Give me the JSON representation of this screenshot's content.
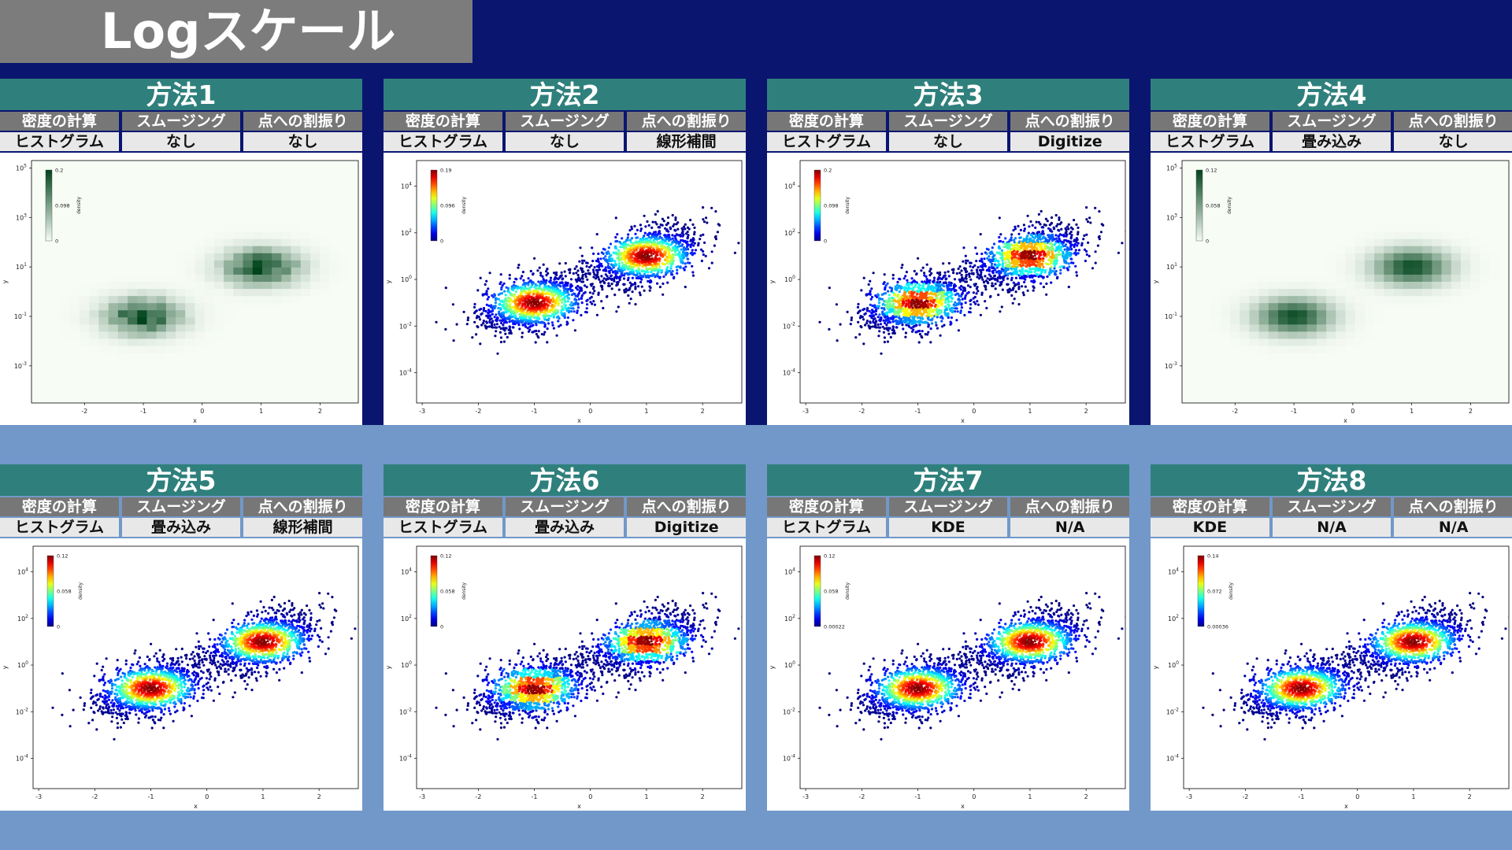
{
  "page": {
    "title": "Logスケール",
    "colors": {
      "background": "#0a1570",
      "lower_band": "#7198c8",
      "panel_header": "#2f807c",
      "label_header": "#777777",
      "value_cell": "#e8e8e8"
    }
  },
  "panels": [
    {
      "name": "方法1",
      "headers": [
        "密度の計算",
        "スムージング",
        "点への割振り"
      ],
      "values": [
        "ヒストグラム",
        "なし",
        "なし"
      ]
    },
    {
      "name": "方法2",
      "headers": [
        "密度の計算",
        "スムージング",
        "点への割振り"
      ],
      "values": [
        "ヒストグラム",
        "なし",
        "線形補間"
      ]
    },
    {
      "name": "方法3",
      "headers": [
        "密度の計算",
        "スムージング",
        "点への割振り"
      ],
      "values": [
        "ヒストグラム",
        "なし",
        "Digitize"
      ]
    },
    {
      "name": "方法4",
      "headers": [
        "密度の計算",
        "スムージング",
        "点への割振り"
      ],
      "values": [
        "ヒストグラム",
        "畳み込み",
        "なし"
      ]
    },
    {
      "name": "方法5",
      "headers": [
        "密度の計算",
        "スムージング",
        "点への割振り"
      ],
      "values": [
        "ヒストグラム",
        "畳み込み",
        "線形補間"
      ]
    },
    {
      "name": "方法6",
      "headers": [
        "密度の計算",
        "スムージング",
        "点への割振り"
      ],
      "values": [
        "ヒストグラム",
        "畳み込み",
        "Digitize"
      ]
    },
    {
      "name": "方法7",
      "headers": [
        "密度の計算",
        "スムージング",
        "点への割振り"
      ],
      "values": [
        "ヒストグラム",
        "KDE",
        "N/A"
      ]
    },
    {
      "name": "方法8",
      "headers": [
        "密度の計算",
        "スムージング",
        "点への割振り"
      ],
      "values": [
        "KDE",
        "N/A",
        "N/A"
      ]
    }
  ],
  "chart_data": [
    {
      "type": "heatmap",
      "render": "histogram",
      "colormap": "Greens",
      "xlabel": "x",
      "ylabel": "y",
      "y_scale": "log",
      "x_ticks": [
        "-2",
        "-1",
        "0",
        "1",
        "2"
      ],
      "y_ticks": [
        "10^5",
        "10^3",
        "10^1",
        "10^-1",
        "10^-3"
      ],
      "colorbar": {
        "label": "density",
        "ticks": [
          "0.2",
          "0.098",
          "0"
        ]
      },
      "clusters": [
        {
          "x": -1,
          "log10_y": -1
        },
        {
          "x": 1,
          "log10_y": 1
        }
      ]
    },
    {
      "type": "scatter",
      "render": "points",
      "colormap": "jet",
      "xlabel": "x",
      "ylabel": "y",
      "y_scale": "log",
      "x_ticks": [
        "-3",
        "-2",
        "-1",
        "0",
        "1",
        "2"
      ],
      "y_ticks": [
        "10^4",
        "10^2",
        "10^0",
        "10^-2",
        "10^-4"
      ],
      "colorbar": {
        "label": "density",
        "ticks": [
          "0.19",
          "0.096",
          "0"
        ]
      },
      "clusters": [
        {
          "x": -1,
          "log10_y": -1
        },
        {
          "x": 1,
          "log10_y": 1
        }
      ]
    },
    {
      "type": "scatter",
      "render": "blocky",
      "colormap": "jet",
      "xlabel": "x",
      "ylabel": "y",
      "y_scale": "log",
      "x_ticks": [
        "-3",
        "-2",
        "-1",
        "0",
        "1",
        "2"
      ],
      "y_ticks": [
        "10^4",
        "10^2",
        "10^0",
        "10^-2",
        "10^-4"
      ],
      "colorbar": {
        "label": "density",
        "ticks": [
          "0.2",
          "0.098",
          "0"
        ]
      },
      "clusters": [
        {
          "x": -1,
          "log10_y": -1
        },
        {
          "x": 1,
          "log10_y": 1
        }
      ]
    },
    {
      "type": "heatmap",
      "render": "smooth",
      "colormap": "Greens",
      "xlabel": "x",
      "ylabel": "y",
      "y_scale": "log",
      "x_ticks": [
        "-2",
        "-1",
        "0",
        "1",
        "2"
      ],
      "y_ticks": [
        "10^5",
        "10^3",
        "10^1",
        "10^-1",
        "10^-3"
      ],
      "colorbar": {
        "label": "density",
        "ticks": [
          "0.12",
          "0.058",
          "0"
        ]
      },
      "clusters": [
        {
          "x": -1,
          "log10_y": -1
        },
        {
          "x": 1,
          "log10_y": 1
        }
      ]
    },
    {
      "type": "scatter",
      "render": "smooth",
      "colormap": "jet",
      "xlabel": "x",
      "ylabel": "y",
      "y_scale": "log",
      "x_ticks": [
        "-3",
        "-2",
        "-1",
        "0",
        "1",
        "2"
      ],
      "y_ticks": [
        "10^4",
        "10^2",
        "10^0",
        "10^-2",
        "10^-4"
      ],
      "colorbar": {
        "label": "density",
        "ticks": [
          "0.12",
          "0.058",
          "0"
        ]
      },
      "clusters": [
        {
          "x": -1,
          "log10_y": -1
        },
        {
          "x": 1,
          "log10_y": 1
        }
      ]
    },
    {
      "type": "scatter",
      "render": "blocky",
      "colormap": "jet",
      "xlabel": "x",
      "ylabel": "y",
      "y_scale": "log",
      "x_ticks": [
        "-3",
        "-2",
        "-1",
        "0",
        "1",
        "2"
      ],
      "y_ticks": [
        "10^4",
        "10^2",
        "10^0",
        "10^-2",
        "10^-4"
      ],
      "colorbar": {
        "label": "density",
        "ticks": [
          "0.12",
          "0.058",
          "0"
        ]
      },
      "clusters": [
        {
          "x": -1,
          "log10_y": -1
        },
        {
          "x": 1,
          "log10_y": 1
        }
      ]
    },
    {
      "type": "scatter",
      "render": "smooth",
      "colormap": "jet",
      "xlabel": "x",
      "ylabel": "y",
      "y_scale": "log",
      "x_ticks": [
        "-3",
        "-2",
        "-1",
        "0",
        "1",
        "2"
      ],
      "y_ticks": [
        "10^4",
        "10^2",
        "10^0",
        "10^-2",
        "10^-4"
      ],
      "colorbar": {
        "label": "density",
        "ticks": [
          "0.12",
          "0.058",
          "0.00022"
        ]
      },
      "clusters": [
        {
          "x": -1,
          "log10_y": -1
        },
        {
          "x": 1,
          "log10_y": 1
        }
      ]
    },
    {
      "type": "scatter",
      "render": "smooth",
      "colormap": "jet",
      "xlabel": "x",
      "ylabel": "y",
      "y_scale": "log",
      "x_ticks": [
        "-3",
        "-2",
        "-1",
        "0",
        "1",
        "2"
      ],
      "y_ticks": [
        "10^4",
        "10^2",
        "10^0",
        "10^-2",
        "10^-4"
      ],
      "colorbar": {
        "label": "density",
        "ticks": [
          "0.14",
          "0.072",
          "0.00036"
        ]
      },
      "clusters": [
        {
          "x": -1,
          "log10_y": -1
        },
        {
          "x": 1,
          "log10_y": 1
        }
      ]
    }
  ]
}
